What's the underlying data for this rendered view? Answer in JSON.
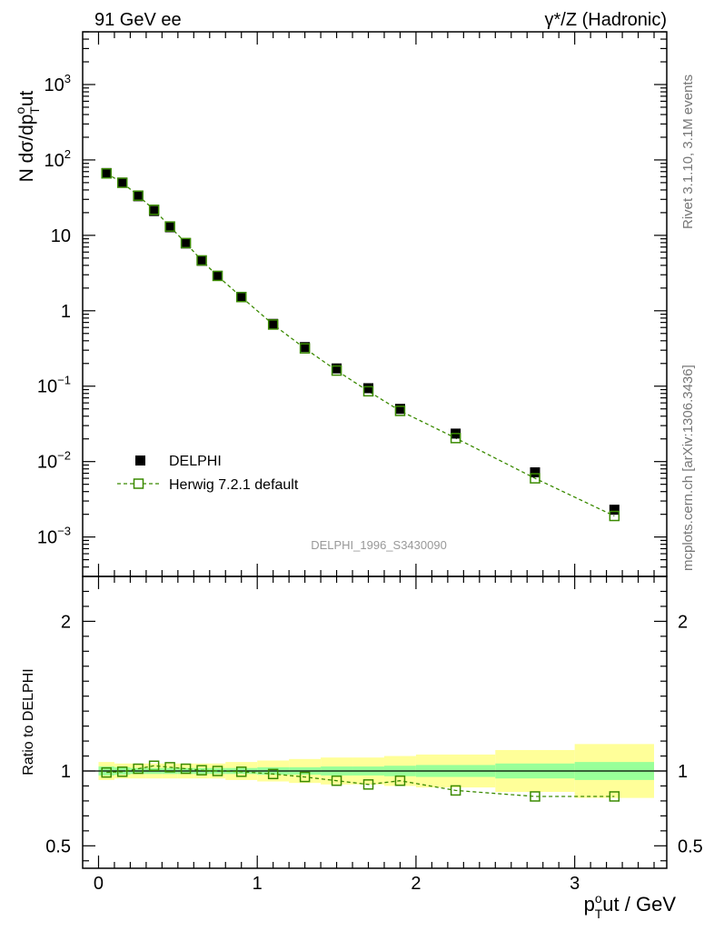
{
  "header": {
    "left": "91 GeV ee",
    "right_prefix": "γ*/Z",
    "right_suffix": " (Hadronic)"
  },
  "side": {
    "rivet": "Rivet 3.1.10,  3.1M events",
    "mcplots": "mcplots.cern.ch [arXiv:1306.3436]"
  },
  "watermark": "DELPHI_1996_S3430090",
  "legend": {
    "data_label": "DELPHI",
    "mc_label": "Herwig 7.2.1 default"
  },
  "colors": {
    "data": "#000000",
    "mc": "#3a8a00",
    "band_outer": "#ffff99",
    "band_inner": "#99ff99",
    "watermark": "#999999",
    "side_text": "#777777"
  },
  "chart_data": [
    {
      "type": "scatter",
      "yscale": "log",
      "ylabel_parts": [
        "N dσ/dp",
        "T",
        "o",
        "ut"
      ],
      "xlim": [
        -0.1,
        3.58
      ],
      "ylim": [
        0.0003,
        5000
      ],
      "y_ticks": [
        {
          "value": 1000,
          "label": "10",
          "exp": "3"
        },
        {
          "value": 100,
          "label": "10",
          "exp": "2"
        },
        {
          "value": 10,
          "label": "10",
          "exp": ""
        },
        {
          "value": 1,
          "label": "1",
          "exp": ""
        },
        {
          "value": 0.1,
          "label": "10",
          "exp": "−1"
        },
        {
          "value": 0.01,
          "label": "10",
          "exp": "−2"
        },
        {
          "value": 0.001,
          "label": "10",
          "exp": "−3"
        }
      ],
      "series": [
        {
          "name": "DELPHI",
          "marker": "filled-square",
          "x": [
            0.05,
            0.15,
            0.25,
            0.35,
            0.45,
            0.55,
            0.65,
            0.75,
            0.9,
            1.1,
            1.3,
            1.5,
            1.7,
            1.9,
            2.25,
            2.75,
            3.25
          ],
          "y": [
            67,
            50,
            33,
            21,
            12.8,
            7.8,
            4.6,
            2.9,
            1.53,
            0.67,
            0.33,
            0.172,
            0.094,
            0.05,
            0.0235,
            0.0072,
            0.0023
          ]
        },
        {
          "name": "Herwig 7.2.1 default",
          "marker": "open-square",
          "line": "dashed",
          "x": [
            0.05,
            0.15,
            0.25,
            0.35,
            0.45,
            0.55,
            0.65,
            0.75,
            0.9,
            1.1,
            1.3,
            1.5,
            1.7,
            1.9,
            2.25,
            2.75,
            3.25
          ],
          "y": [
            66.3,
            49.8,
            33.6,
            21.8,
            13.1,
            7.9,
            4.65,
            2.9,
            1.52,
            0.657,
            0.317,
            0.161,
            0.0856,
            0.047,
            0.0205,
            0.006,
            0.0019
          ]
        }
      ]
    },
    {
      "type": "scatter",
      "ylabel": "Ratio to DELPHI",
      "xlabel_parts": [
        "p",
        "T",
        "o",
        "ut / GeV"
      ],
      "xlim": [
        -0.1,
        3.58
      ],
      "ylim": [
        0.35,
        2.3
      ],
      "x_ticks": [
        0,
        1,
        2,
        3
      ],
      "y_ticks": [
        0.5,
        1,
        2
      ],
      "bands": {
        "edges": [
          0,
          0.1,
          0.2,
          0.3,
          0.4,
          0.5,
          0.6,
          0.7,
          0.8,
          1.0,
          1.2,
          1.4,
          1.6,
          1.8,
          2.0,
          2.5,
          3.0,
          3.5
        ],
        "inner": [
          0.03,
          0.025,
          0.02,
          0.02,
          0.02,
          0.02,
          0.02,
          0.02,
          0.02,
          0.025,
          0.025,
          0.03,
          0.03,
          0.035,
          0.04,
          0.05,
          0.06
        ],
        "outer": [
          0.06,
          0.05,
          0.05,
          0.05,
          0.05,
          0.05,
          0.05,
          0.05,
          0.06,
          0.07,
          0.08,
          0.09,
          0.09,
          0.1,
          0.11,
          0.14,
          0.18
        ]
      },
      "series": [
        {
          "name": "Herwig 7.2.1 default",
          "marker": "open-square",
          "line": "dashed",
          "x": [
            0.05,
            0.15,
            0.25,
            0.35,
            0.45,
            0.55,
            0.65,
            0.75,
            0.9,
            1.1,
            1.3,
            1.5,
            1.7,
            1.9,
            2.25,
            2.75,
            3.25
          ],
          "y": [
            0.99,
            0.995,
            1.015,
            1.035,
            1.025,
            1.015,
            1.005,
            1.0,
            0.995,
            0.98,
            0.96,
            0.935,
            0.91,
            0.935,
            0.87,
            0.83,
            0.83
          ]
        }
      ]
    }
  ]
}
